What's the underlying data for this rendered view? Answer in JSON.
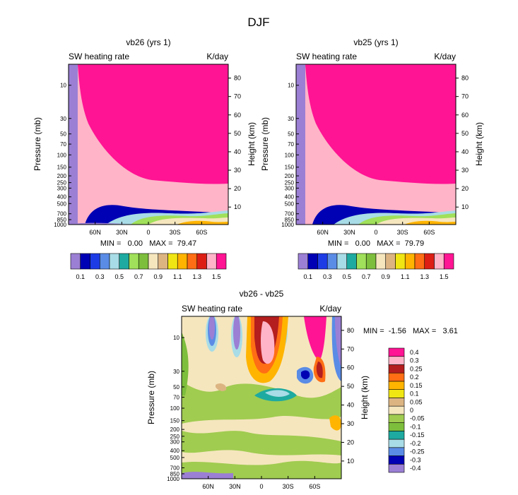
{
  "page_title": "DJF",
  "colors": {
    "palette": [
      "#9B7FD4",
      "#0000B4",
      "#1E3CE6",
      "#5A8CE6",
      "#A8DCE6",
      "#1EAAA0",
      "#A0E05A",
      "#7DBE3C",
      "#F5E6BE",
      "#DCB482",
      "#F0E614",
      "#FFB400",
      "#FF6E14",
      "#DC1E14",
      "#FFB4C8",
      "#FF1493"
    ],
    "diff_palette": [
      "#9B7FD4",
      "#0000B4",
      "#5A8CE6",
      "#A8DCE6",
      "#1EAAA0",
      "#7DBE3C",
      "#A0CC50",
      "#F5E6BE",
      "#DCB482",
      "#F0E614",
      "#FFB400",
      "#FF6E14",
      "#B41E1E",
      "#FFB4C8",
      "#FF1493"
    ]
  },
  "chart_data": [
    {
      "id": "vb26",
      "type": "contour",
      "title": "vb26 (yrs 1)",
      "field_label": "SW heating rate",
      "units": "K/day",
      "ylabel": "Pressure (mb)",
      "ylabel_right": "Height (km)",
      "x_ticks": [
        "60N",
        "30N",
        "0",
        "30S",
        "60S"
      ],
      "x_values": [
        60,
        30,
        0,
        -30,
        -60
      ],
      "xlim": [
        90,
        -90
      ],
      "y_ticks_left": [
        "10",
        "30",
        "50",
        "70",
        "100",
        "150",
        "200",
        "250",
        "300",
        "400",
        "500",
        "700",
        "850",
        "1000"
      ],
      "y_ticks_right": [
        80,
        70,
        60,
        50,
        40,
        30,
        20,
        10
      ],
      "stats_text": "MIN =   0.00   MAX =  79.47",
      "min": 0.0,
      "max": 79.47,
      "colorbar_labels": [
        "0.1",
        "0.3",
        "0.5",
        "0.7",
        "0.9",
        "1.1",
        "1.3",
        "1.5"
      ],
      "levels": [
        0.1,
        0.2,
        0.3,
        0.4,
        0.5,
        0.6,
        0.7,
        0.8,
        0.9,
        1.0,
        1.1,
        1.2,
        1.3,
        1.4,
        1.5
      ]
    },
    {
      "id": "vb25",
      "type": "contour",
      "title": "vb25 (yrs 1)",
      "field_label": "SW heating rate",
      "units": "K/day",
      "ylabel": "Pressure (mb)",
      "ylabel_right": "Height (km)",
      "x_ticks": [
        "60N",
        "30N",
        "0",
        "30S",
        "60S"
      ],
      "x_values": [
        60,
        30,
        0,
        -30,
        -60
      ],
      "xlim": [
        90,
        -90
      ],
      "y_ticks_left": [
        "10",
        "30",
        "50",
        "70",
        "100",
        "150",
        "200",
        "250",
        "300",
        "400",
        "500",
        "700",
        "850",
        "1000"
      ],
      "y_ticks_right": [
        80,
        70,
        60,
        50,
        40,
        30,
        20,
        10
      ],
      "stats_text": "MIN =   0.00   MAX =  79.79",
      "min": 0.0,
      "max": 79.79,
      "colorbar_labels": [
        "0.1",
        "0.3",
        "0.5",
        "0.7",
        "0.9",
        "1.1",
        "1.3",
        "1.5"
      ],
      "levels": [
        0.1,
        0.2,
        0.3,
        0.4,
        0.5,
        0.6,
        0.7,
        0.8,
        0.9,
        1.0,
        1.1,
        1.2,
        1.3,
        1.4,
        1.5
      ]
    },
    {
      "id": "diff",
      "type": "contour",
      "title": "vb26 - vb25",
      "field_label": "SW heating rate",
      "units": "K/day",
      "ylabel": "Pressure (mb)",
      "ylabel_right": "Height (km)",
      "x_ticks": [
        "60N",
        "30N",
        "0",
        "30S",
        "60S"
      ],
      "x_values": [
        60,
        30,
        0,
        -30,
        -60
      ],
      "xlim": [
        90,
        -90
      ],
      "y_ticks_left": [
        "10",
        "30",
        "50",
        "70",
        "100",
        "150",
        "200",
        "250",
        "300",
        "400",
        "500",
        "700",
        "850",
        "1000"
      ],
      "y_ticks_right": [
        80,
        70,
        60,
        50,
        40,
        30,
        20,
        10
      ],
      "stats_text": "MIN =  -1.56   MAX =   3.61",
      "min": -1.56,
      "max": 3.61,
      "colorbar_labels": [
        "0.4",
        "0.3",
        "0.25",
        "0.2",
        "0.15",
        "0.1",
        "0.05",
        "0",
        "-0.05",
        "-0.1",
        "-0.15",
        "-0.2",
        "-0.25",
        "-0.3",
        "-0.4"
      ],
      "levels": [
        -0.4,
        -0.3,
        -0.25,
        -0.2,
        -0.15,
        -0.1,
        -0.05,
        0,
        0.05,
        0.1,
        0.15,
        0.2,
        0.25,
        0.3,
        0.4
      ]
    }
  ]
}
